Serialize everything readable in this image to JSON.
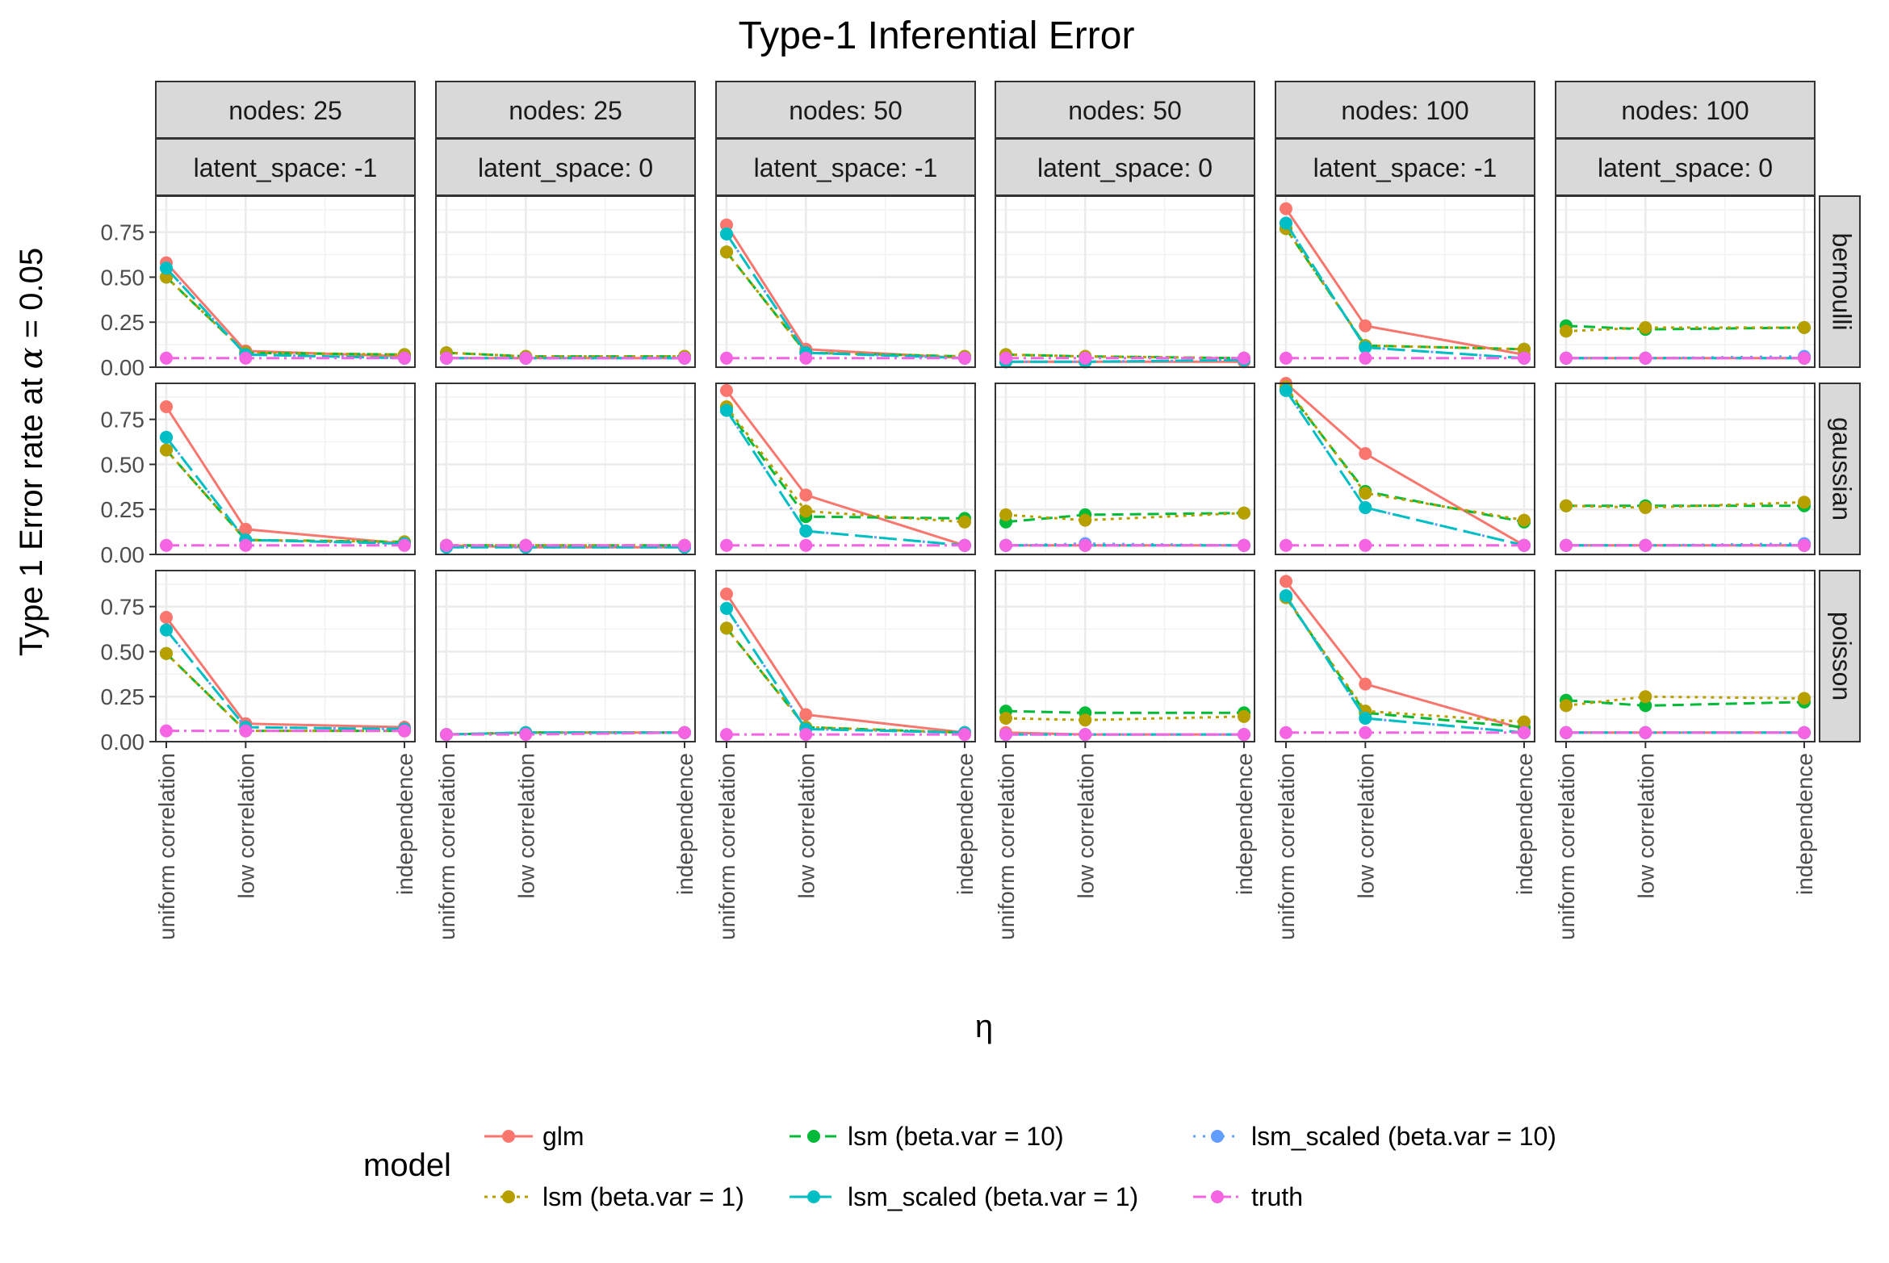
{
  "chart_data": {
    "type": "line",
    "title": "Type-1 Inferential Error",
    "xlabel": "η",
    "ylabel_prefix": "Type 1 Error rate at ",
    "ylabel_symbol": "α",
    "ylabel_suffix": " = 0.05",
    "ylim": [
      0,
      0.95
    ],
    "y_ticks": [
      "0.00",
      "0.25",
      "0.50",
      "0.75"
    ],
    "y_tick_values": [
      0,
      0.25,
      0.5,
      0.75
    ],
    "x_categories": [
      "uniform correlation",
      "low correlation",
      "independence"
    ],
    "x_positions": [
      0,
      1,
      3
    ],
    "columns": [
      {
        "nodes": "nodes: 25",
        "latent": "latent_space: -1"
      },
      {
        "nodes": "nodes: 25",
        "latent": "latent_space: 0"
      },
      {
        "nodes": "nodes: 50",
        "latent": "latent_space: -1"
      },
      {
        "nodes": "nodes: 50",
        "latent": "latent_space: 0"
      },
      {
        "nodes": "nodes: 100",
        "latent": "latent_space: -1"
      },
      {
        "nodes": "nodes: 100",
        "latent": "latent_space: 0"
      }
    ],
    "rows": [
      "bernoulli",
      "gaussian",
      "poisson"
    ],
    "legend_title": "model",
    "legend_placement": "bottom",
    "series": [
      {
        "name": "glm",
        "color": "#F8766D",
        "dash": "none",
        "order": 0
      },
      {
        "name": "lsm (beta.var = 1)",
        "color": "#B79F00",
        "dash": "4,6",
        "order": 3
      },
      {
        "name": "lsm (beta.var = 10)",
        "color": "#00BA38",
        "dash": "14,8",
        "order": 1
      },
      {
        "name": "lsm_scaled (beta.var = 1)",
        "color": "#00BFC4",
        "dash": "22,8",
        "order": 4
      },
      {
        "name": "lsm_scaled (beta.var = 10)",
        "color": "#619CFF",
        "dash": "3,9",
        "order": 2
      },
      {
        "name": "truth",
        "color": "#F564E3",
        "dash": "16,6,3,6",
        "order": 5
      }
    ],
    "values": {
      "bernoulli": [
        [
          [
            0.58,
            0.09,
            0.06
          ],
          [
            0.5,
            0.08,
            0.07
          ],
          [
            0.5,
            0.08,
            0.07
          ],
          [
            0.55,
            0.07,
            0.05
          ],
          [
            0.55,
            0.07,
            0.05
          ],
          [
            0.05,
            0.05,
            0.05
          ]
        ],
        [
          [
            0.05,
            0.05,
            0.05
          ],
          [
            0.08,
            0.06,
            0.06
          ],
          [
            0.08,
            0.06,
            0.06
          ],
          [
            0.05,
            0.05,
            0.05
          ],
          [
            0.05,
            0.05,
            0.05
          ],
          [
            0.05,
            0.05,
            0.05
          ]
        ],
        [
          [
            0.79,
            0.1,
            0.05
          ],
          [
            0.64,
            0.08,
            0.06
          ],
          [
            0.64,
            0.08,
            0.06
          ],
          [
            0.74,
            0.08,
            0.05
          ],
          [
            0.74,
            0.08,
            0.05
          ],
          [
            0.05,
            0.05,
            0.05
          ]
        ],
        [
          [
            0.03,
            0.03,
            0.03
          ],
          [
            0.07,
            0.06,
            0.05
          ],
          [
            0.07,
            0.06,
            0.05
          ],
          [
            0.03,
            0.03,
            0.04
          ],
          [
            0.03,
            0.03,
            0.04
          ],
          [
            0.05,
            0.05,
            0.05
          ]
        ],
        [
          [
            0.88,
            0.23,
            0.07
          ],
          [
            0.77,
            0.12,
            0.1
          ],
          [
            0.77,
            0.12,
            0.1
          ],
          [
            0.8,
            0.11,
            0.05
          ],
          [
            0.8,
            0.11,
            0.05
          ],
          [
            0.05,
            0.05,
            0.05
          ]
        ],
        [
          [
            0.05,
            0.05,
            0.05
          ],
          [
            0.2,
            0.22,
            0.22
          ],
          [
            0.23,
            0.21,
            0.22
          ],
          [
            0.05,
            0.05,
            0.05
          ],
          [
            0.05,
            0.05,
            0.06
          ],
          [
            0.05,
            0.05,
            0.05
          ]
        ]
      ],
      "gaussian": [
        [
          [
            0.82,
            0.14,
            0.06
          ],
          [
            0.58,
            0.08,
            0.07
          ],
          [
            0.58,
            0.08,
            0.07
          ],
          [
            0.65,
            0.08,
            0.06
          ],
          [
            0.65,
            0.08,
            0.06
          ],
          [
            0.05,
            0.05,
            0.05
          ]
        ],
        [
          [
            0.05,
            0.04,
            0.04
          ],
          [
            0.05,
            0.05,
            0.05
          ],
          [
            0.05,
            0.05,
            0.05
          ],
          [
            0.04,
            0.04,
            0.04
          ],
          [
            0.04,
            0.04,
            0.04
          ],
          [
            0.05,
            0.05,
            0.05
          ]
        ],
        [
          [
            0.91,
            0.33,
            0.05
          ],
          [
            0.82,
            0.24,
            0.18
          ],
          [
            0.81,
            0.21,
            0.2
          ],
          [
            0.8,
            0.13,
            0.05
          ],
          [
            0.8,
            0.13,
            0.05
          ],
          [
            0.05,
            0.05,
            0.05
          ]
        ],
        [
          [
            0.05,
            0.05,
            0.05
          ],
          [
            0.22,
            0.19,
            0.23
          ],
          [
            0.18,
            0.22,
            0.23
          ],
          [
            0.05,
            0.05,
            0.05
          ],
          [
            0.05,
            0.06,
            0.05
          ],
          [
            0.05,
            0.05,
            0.05
          ]
        ],
        [
          [
            0.95,
            0.56,
            0.05
          ],
          [
            0.93,
            0.34,
            0.19
          ],
          [
            0.92,
            0.35,
            0.18
          ],
          [
            0.91,
            0.26,
            0.05
          ],
          [
            0.91,
            0.26,
            0.05
          ],
          [
            0.05,
            0.05,
            0.05
          ]
        ],
        [
          [
            0.05,
            0.05,
            0.05
          ],
          [
            0.27,
            0.26,
            0.29
          ],
          [
            0.27,
            0.27,
            0.27
          ],
          [
            0.05,
            0.05,
            0.05
          ],
          [
            0.05,
            0.05,
            0.06
          ],
          [
            0.05,
            0.05,
            0.05
          ]
        ]
      ],
      "poisson": [
        [
          [
            0.69,
            0.1,
            0.08
          ],
          [
            0.49,
            0.06,
            0.06
          ],
          [
            0.49,
            0.06,
            0.06
          ],
          [
            0.62,
            0.08,
            0.07
          ],
          [
            0.62,
            0.08,
            0.07
          ],
          [
            0.06,
            0.06,
            0.06
          ]
        ],
        [
          [
            0.04,
            0.05,
            0.05
          ],
          [
            0.04,
            0.05,
            0.05
          ],
          [
            0.04,
            0.05,
            0.05
          ],
          [
            0.04,
            0.05,
            0.05
          ],
          [
            0.04,
            0.05,
            0.05
          ],
          [
            0.04,
            0.04,
            0.05
          ]
        ],
        [
          [
            0.82,
            0.15,
            0.05
          ],
          [
            0.63,
            0.08,
            0.05
          ],
          [
            0.63,
            0.08,
            0.05
          ],
          [
            0.74,
            0.07,
            0.05
          ],
          [
            0.74,
            0.07,
            0.05
          ],
          [
            0.04,
            0.04,
            0.04
          ]
        ],
        [
          [
            0.05,
            0.04,
            0.04
          ],
          [
            0.13,
            0.12,
            0.14
          ],
          [
            0.17,
            0.16,
            0.16
          ],
          [
            0.04,
            0.04,
            0.04
          ],
          [
            0.04,
            0.04,
            0.04
          ],
          [
            0.04,
            0.04,
            0.04
          ]
        ],
        [
          [
            0.89,
            0.32,
            0.07
          ],
          [
            0.8,
            0.17,
            0.11
          ],
          [
            0.8,
            0.16,
            0.08
          ],
          [
            0.81,
            0.13,
            0.05
          ],
          [
            0.81,
            0.13,
            0.05
          ],
          [
            0.05,
            0.05,
            0.05
          ]
        ],
        [
          [
            0.05,
            0.05,
            0.05
          ],
          [
            0.2,
            0.25,
            0.24
          ],
          [
            0.23,
            0.2,
            0.22
          ],
          [
            0.05,
            0.05,
            0.05
          ],
          [
            0.05,
            0.05,
            0.05
          ],
          [
            0.05,
            0.05,
            0.05
          ]
        ]
      ]
    }
  }
}
